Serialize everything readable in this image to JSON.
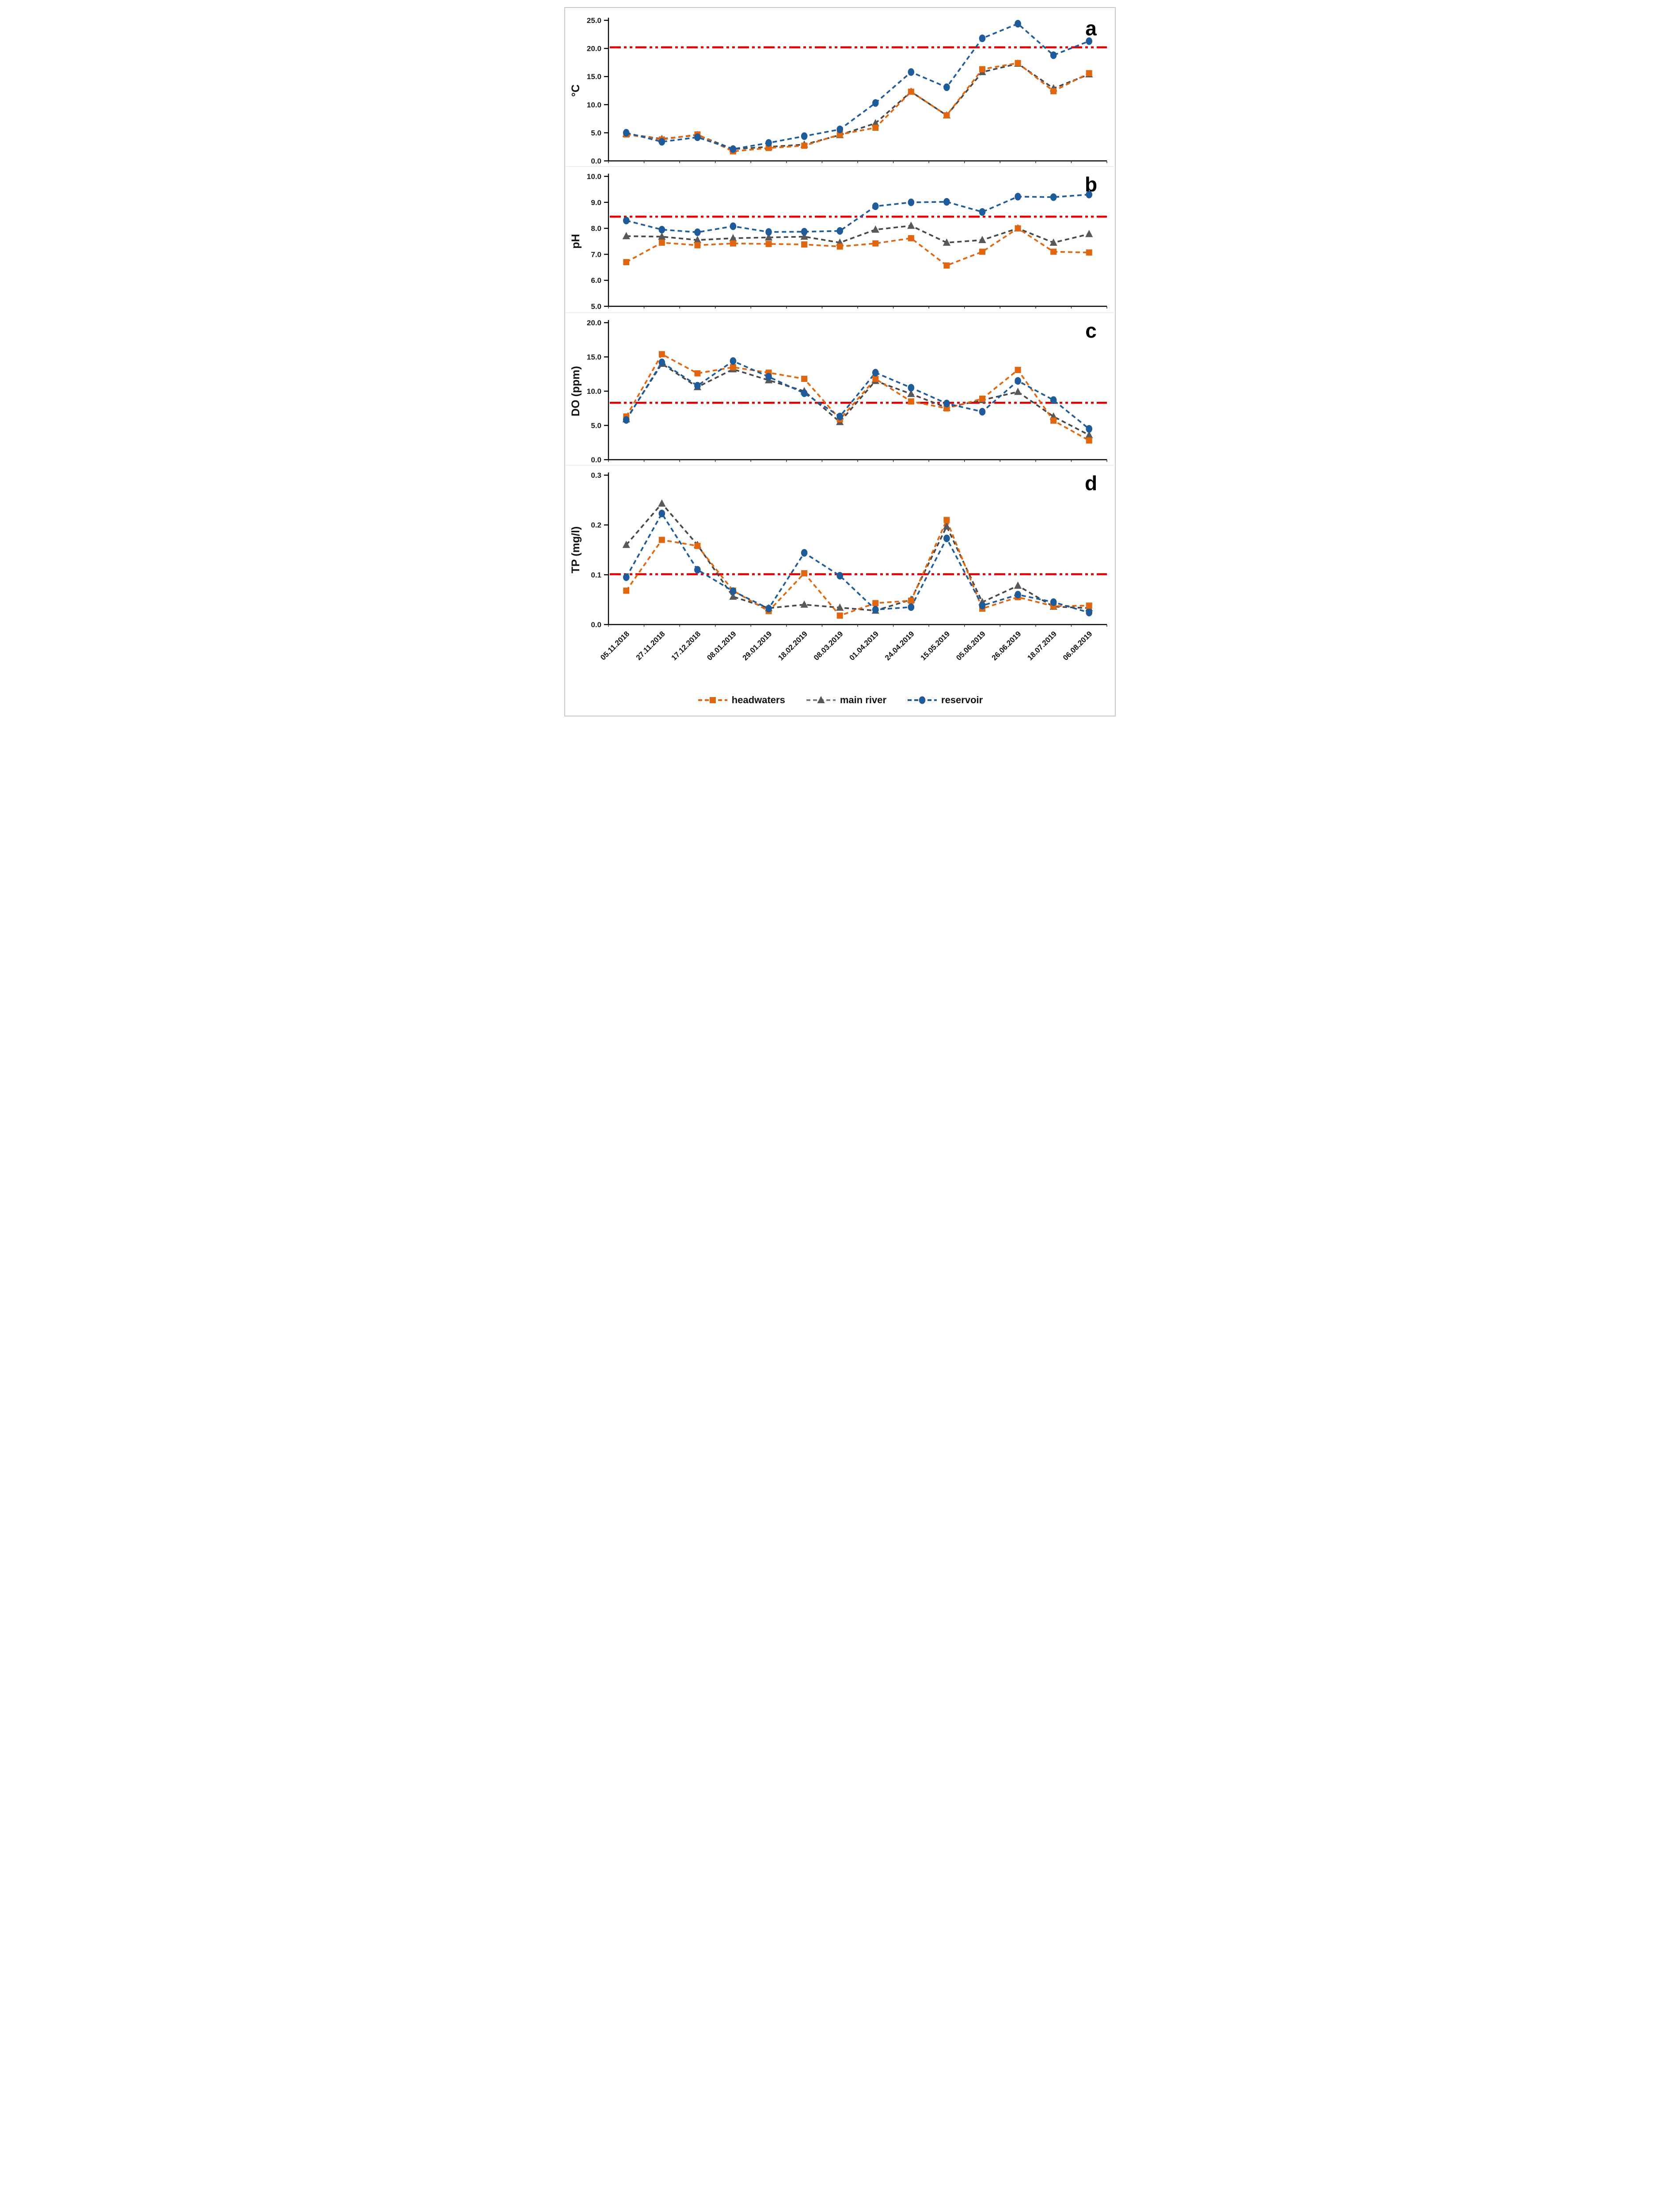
{
  "figure_title": "",
  "colors": {
    "headwaters": "#e0660f",
    "main_river_marker": "#595959",
    "main_river_line": "#474747",
    "reservoir": "#1f5b99",
    "reference_line": "#e60000",
    "axis": "#000000",
    "tick_text": "#1a1a1a",
    "figure_border": "#c9c9c9"
  },
  "categories": [
    "05.11.2018",
    "27.11.2018",
    "17.12.2018",
    "08.01.2019",
    "29.01.2019",
    "18.02.2019",
    "08.03.2019",
    "01.04.2019",
    "24.04.2019",
    "15.05.2019",
    "05.06.2019",
    "26.06.2019",
    "18.07.2019",
    "06.08.2019"
  ],
  "legend": {
    "items": [
      {
        "label": "headwaters",
        "marker": "square",
        "color_key": "headwaters"
      },
      {
        "label": "main river",
        "marker": "triangle",
        "color_key": "main_river_marker"
      },
      {
        "label": "reservoir",
        "marker": "circle",
        "color_key": "reservoir"
      }
    ]
  },
  "chart_data": [
    {
      "type": "line",
      "panel_label": "a",
      "ylabel": "°C",
      "ylim": [
        0,
        25
      ],
      "yticks": [
        "0.0",
        "5.0",
        "10.0",
        "15.0",
        "20.0",
        "25.0"
      ],
      "ref_line": 20.2,
      "grid": false,
      "show_x_labels": false,
      "series": [
        {
          "name": "headwaters",
          "marker": "square",
          "values": [
            4.7,
            3.8,
            4.7,
            1.7,
            2.3,
            2.7,
            4.7,
            5.9,
            12.3,
            8.1,
            16.3,
            17.4,
            12.4,
            15.6
          ]
        },
        {
          "name": "main river",
          "marker": "triangle",
          "values": [
            4.8,
            3.9,
            4.6,
            2.1,
            2.5,
            2.9,
            4.6,
            6.7,
            12.3,
            8.1,
            15.8,
            17.3,
            12.9,
            15.4
          ]
        },
        {
          "name": "reservoir",
          "marker": "circle",
          "values": [
            5.0,
            3.4,
            4.2,
            2.1,
            3.2,
            4.4,
            5.6,
            10.3,
            15.8,
            13.1,
            21.8,
            24.4,
            18.8,
            21.3
          ]
        }
      ]
    },
    {
      "type": "line",
      "panel_label": "b",
      "ylabel": "pH",
      "ylim": [
        5,
        10
      ],
      "yticks": [
        "5.0",
        "6.0",
        "7.0",
        "8.0",
        "9.0",
        "10.0"
      ],
      "ref_line": 8.45,
      "grid": false,
      "show_x_labels": false,
      "series": [
        {
          "name": "headwaters",
          "marker": "square",
          "values": [
            6.7,
            7.45,
            7.35,
            7.42,
            7.4,
            7.38,
            7.3,
            7.42,
            7.62,
            6.57,
            7.1,
            8.0,
            7.1,
            7.07
          ]
        },
        {
          "name": "main river",
          "marker": "triangle",
          "values": [
            7.7,
            7.68,
            7.55,
            7.62,
            7.65,
            7.68,
            7.45,
            7.95,
            8.1,
            7.45,
            7.55,
            8.0,
            7.45,
            7.78
          ]
        },
        {
          "name": "reservoir",
          "marker": "circle",
          "values": [
            8.3,
            7.95,
            7.85,
            8.08,
            7.86,
            7.87,
            7.9,
            8.85,
            9.0,
            9.02,
            8.63,
            9.22,
            9.2,
            9.3
          ]
        }
      ]
    },
    {
      "type": "line",
      "panel_label": "c",
      "ylabel": "DO (ppm)",
      "ylim": [
        0,
        20
      ],
      "yticks": [
        "0.0",
        "5.0",
        "10.0",
        "15.0",
        "20.0"
      ],
      "ref_line": 8.3,
      "grid": false,
      "show_x_labels": false,
      "series": [
        {
          "name": "headwaters",
          "marker": "square",
          "values": [
            6.3,
            15.4,
            12.6,
            13.5,
            12.7,
            11.8,
            5.9,
            11.8,
            8.5,
            7.5,
            8.9,
            13.1,
            5.7,
            2.8
          ]
        },
        {
          "name": "main river",
          "marker": "triangle",
          "values": [
            5.9,
            14.0,
            10.6,
            13.2,
            11.6,
            10.0,
            5.5,
            11.5,
            9.6,
            7.6,
            8.7,
            9.9,
            6.3,
            3.6
          ]
        },
        {
          "name": "reservoir",
          "marker": "circle",
          "values": [
            5.8,
            14.2,
            10.8,
            14.4,
            12.1,
            9.7,
            6.3,
            12.7,
            10.5,
            8.2,
            7.0,
            11.5,
            8.7,
            4.5
          ]
        }
      ]
    },
    {
      "type": "line",
      "panel_label": "d",
      "ylabel": "TP (mg/l)",
      "ylim": [
        0,
        0.3
      ],
      "yticks": [
        "0.0",
        "0.1",
        "0.2",
        "0.3"
      ],
      "ref_line": 0.101,
      "grid": false,
      "show_x_labels": true,
      "series": [
        {
          "name": "headwaters",
          "marker": "square",
          "values": [
            0.068,
            0.17,
            0.158,
            0.068,
            0.027,
            0.103,
            0.018,
            0.043,
            0.048,
            0.21,
            0.032,
            0.055,
            0.037,
            0.038
          ]
        },
        {
          "name": "main river",
          "marker": "triangle",
          "values": [
            0.16,
            0.243,
            0.16,
            0.056,
            0.033,
            0.04,
            0.034,
            0.028,
            0.05,
            0.197,
            0.045,
            0.078,
            0.036,
            0.033
          ]
        },
        {
          "name": "reservoir",
          "marker": "circle",
          "values": [
            0.095,
            0.223,
            0.11,
            0.067,
            0.032,
            0.144,
            0.098,
            0.03,
            0.035,
            0.173,
            0.038,
            0.06,
            0.045,
            0.024
          ]
        }
      ]
    }
  ]
}
